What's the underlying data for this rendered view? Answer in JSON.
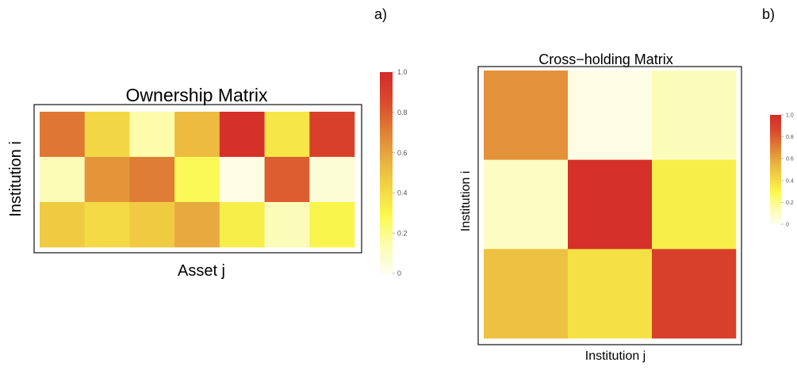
{
  "panel_a_label": "a)",
  "panel_b_label": "b)",
  "chart_data": [
    {
      "type": "heatmap",
      "title": "Ownership Matrix",
      "xlabel": "Asset j",
      "ylabel": "Institution i",
      "rows": 3,
      "cols": 7,
      "values": [
        [
          0.73,
          0.42,
          0.15,
          0.52,
          0.97,
          0.36,
          0.9
        ],
        [
          0.13,
          0.64,
          0.71,
          0.27,
          0.03,
          0.8,
          0.06
        ],
        [
          0.46,
          0.4,
          0.46,
          0.58,
          0.33,
          0.12,
          0.3
        ]
      ],
      "colorbar": {
        "min": 0,
        "max": 1,
        "ticks": [
          "0",
          "0.2",
          "0.4",
          "0.6",
          "0.8",
          "1.0"
        ]
      },
      "colors": [
        "#fdfdf0",
        "#fcfcb0",
        "#fbf94d",
        "#f2d443",
        "#e8ad3f",
        "#e07c34",
        "#d9492c",
        "#d42a2a"
      ]
    },
    {
      "type": "heatmap",
      "title": "Cross−holding Matrix",
      "xlabel": "Institution j",
      "ylabel": "Institution i",
      "rows": 3,
      "cols": 3,
      "values": [
        [
          0.65,
          0.03,
          0.12
        ],
        [
          0.1,
          0.97,
          0.33
        ],
        [
          0.5,
          0.38,
          0.9
        ]
      ],
      "colorbar": {
        "min": 0,
        "max": 1,
        "ticks": [
          "0",
          "0.2",
          "0.4",
          "0.6",
          "0.8",
          "1.0"
        ]
      },
      "colors": [
        "#fdfdf0",
        "#fcfcb0",
        "#fbf94d",
        "#f2d443",
        "#e8ad3f",
        "#e07c34",
        "#d9492c",
        "#d42a2a"
      ]
    }
  ]
}
